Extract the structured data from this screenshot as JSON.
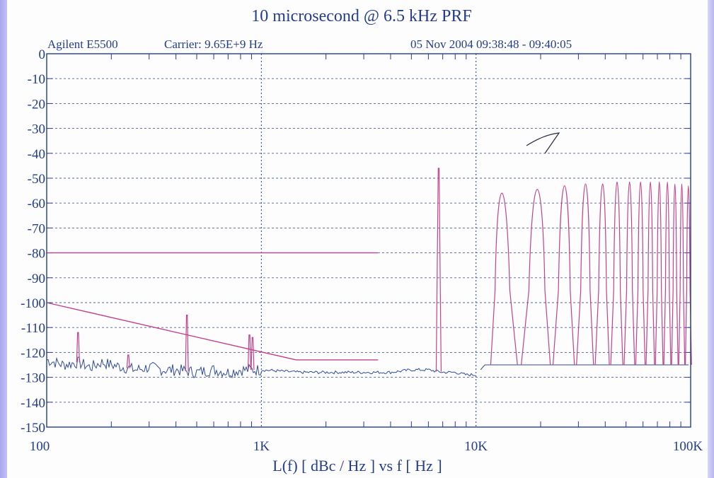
{
  "chart_data": {
    "type": "line",
    "title": "10 microsecond @ 6.5  kHz PRF",
    "instrument": "Agilent E5500",
    "carrier": "Carrier: 9.65E+9 Hz",
    "timestamp": "05 Nov 2004  09:38:48 - 09:40:05",
    "xlabel": "L(f)  [ dBc / Hz ]  vs  f  [ Hz ]",
    "x_scale": "log",
    "xlim": [
      100,
      100000
    ],
    "x_ticks": [
      {
        "value": 100,
        "label": "100"
      },
      {
        "value": 1000,
        "label": "1K"
      },
      {
        "value": 10000,
        "label": "10K"
      },
      {
        "value": 100000,
        "label": "100K"
      }
    ],
    "ylim": [
      -150,
      0
    ],
    "y_ticks": [
      0,
      -10,
      -20,
      -30,
      -40,
      -50,
      -60,
      -70,
      -80,
      -90,
      -100,
      -110,
      -120,
      -130,
      -140,
      -150
    ],
    "grid": true,
    "colors": {
      "axis": "#233d8c",
      "noise_trace": "#2e4c9c",
      "spur_trace": "#c2428c",
      "mask": "#c2428c"
    },
    "series": [
      {
        "kind": "mask_flat",
        "x": [
          100,
          3500
        ],
        "y": [
          -80,
          -80
        ]
      },
      {
        "kind": "mask_slope",
        "x": [
          100,
          1450,
          3500
        ],
        "y": [
          -100,
          -123,
          -123
        ]
      },
      {
        "kind": "noise_floor",
        "x": [
          100,
          120,
          140,
          160,
          180,
          200,
          230,
          260,
          300,
          350,
          400,
          500,
          600,
          700,
          800,
          1000,
          1500,
          2000,
          3000,
          4000,
          5000,
          6000,
          7000,
          8000,
          9000,
          10000,
          11000,
          13000,
          16000,
          20000,
          30000,
          50000,
          70000,
          90000,
          100000
        ],
        "y": [
          -123,
          -125,
          -124,
          -126,
          -124,
          -125,
          -126,
          -127,
          -126,
          -127,
          -127,
          -128,
          -127,
          -128,
          -127,
          -127,
          -128,
          -128,
          -128,
          -128,
          -127,
          -127,
          -128,
          -128,
          -129,
          -129,
          -125,
          -125,
          -125,
          -125,
          -125,
          -125,
          -125,
          -125,
          -125
        ]
      },
      {
        "kind": "spurs",
        "x": [
          140,
          240,
          450,
          880,
          910,
          6700
        ],
        "y": [
          -112,
          -121,
          -105,
          -113,
          -114,
          -46
        ]
      },
      {
        "kind": "prf_lobes",
        "x": [
          13000,
          19500,
          26000,
          32500,
          39000,
          45500,
          52000,
          58500,
          65000,
          71500,
          78000,
          84500,
          91000,
          97500
        ],
        "y": [
          -43,
          -41,
          -39,
          -38,
          -38,
          -37,
          -37,
          -37,
          -37,
          -37,
          -37,
          -38,
          -38,
          -39
        ]
      }
    ],
    "annotations": {
      "marker_note": "handwritten tick near 20K-25K at about -37 dBc/Hz"
    }
  }
}
